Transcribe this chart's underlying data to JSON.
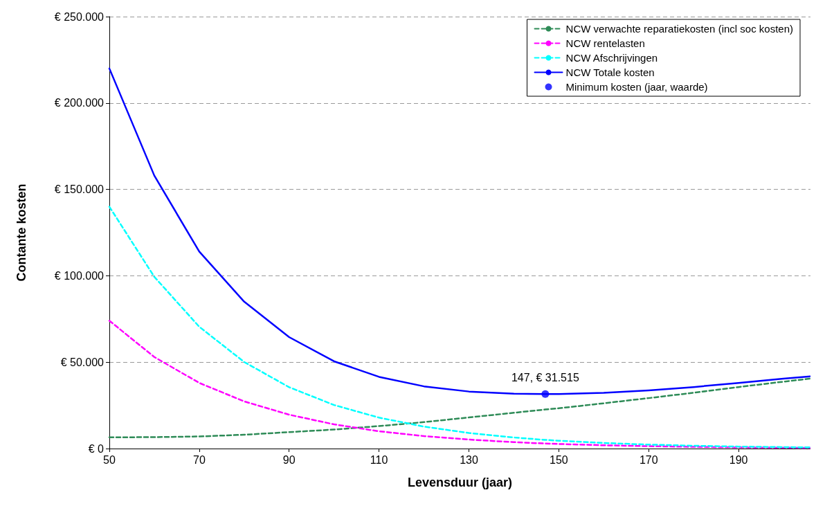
{
  "chart_data": {
    "type": "line",
    "xlabel": "Levensduur (jaar)",
    "ylabel": "Contante kosten",
    "x": [
      50,
      60,
      70,
      80,
      90,
      100,
      110,
      120,
      130,
      140,
      147,
      150,
      160,
      170,
      180,
      190,
      200,
      206
    ],
    "series": [
      {
        "name": "NCW verwachte reparatiekosten (incl soc kosten)",
        "color": "#2e8b57",
        "line_style": "dashed",
        "values": [
          6500,
          6600,
          7000,
          8000,
          9500,
          11000,
          13000,
          15300,
          18000,
          20700,
          22600,
          23300,
          26200,
          29200,
          32300,
          35600,
          38700,
          40500
        ]
      },
      {
        "name": "NCW rentelasten",
        "color": "#ff00ff",
        "line_style": "dashed",
        "values": [
          74000,
          53000,
          38000,
          27300,
          19600,
          14000,
          10000,
          7200,
          5200,
          3700,
          2900,
          2650,
          1900,
          1370,
          980,
          700,
          500,
          410
        ]
      },
      {
        "name": "NCW Afschrijvingen",
        "color": "#00ffff",
        "line_style": "dashed",
        "values": [
          140000,
          99400,
          70500,
          50100,
          35500,
          25200,
          17900,
          12700,
          9000,
          6400,
          5000,
          4540,
          3220,
          2290,
          1620,
          1150,
          820,
          660
        ]
      },
      {
        "name": "NCW Totale kosten",
        "color": "#0000ff",
        "line_style": "solid",
        "values": [
          220000,
          158000,
          114000,
          85000,
          64500,
          50500,
          41500,
          36000,
          33000,
          31800,
          31515,
          31600,
          32300,
          33700,
          35600,
          38000,
          40500,
          41800
        ]
      },
      {
        "name": "Minimum kosten (jaar, waarde)",
        "type": "scatter",
        "marker": "circle",
        "color": "#0000ff",
        "x": [
          147
        ],
        "values": [
          31515
        ]
      }
    ],
    "annotations": [
      {
        "text": "147, € 31.515",
        "x": 147,
        "y": 31515
      }
    ],
    "xlim": [
      50,
      206
    ],
    "xticks": [
      50,
      70,
      90,
      110,
      130,
      150,
      170,
      190
    ],
    "ylim": [
      0,
      250000
    ],
    "yticks": [
      {
        "value": 0,
        "label": "€ 0"
      },
      {
        "value": 50000,
        "label": "€ 50.000"
      },
      {
        "value": 100000,
        "label": "€ 100.000"
      },
      {
        "value": 150000,
        "label": "€ 150.000"
      },
      {
        "value": 200000,
        "label": "€ 200.000"
      },
      {
        "value": 250000,
        "label": "€ 250.000"
      }
    ],
    "grid": "y",
    "legend": "top right",
    "marker": "none"
  }
}
